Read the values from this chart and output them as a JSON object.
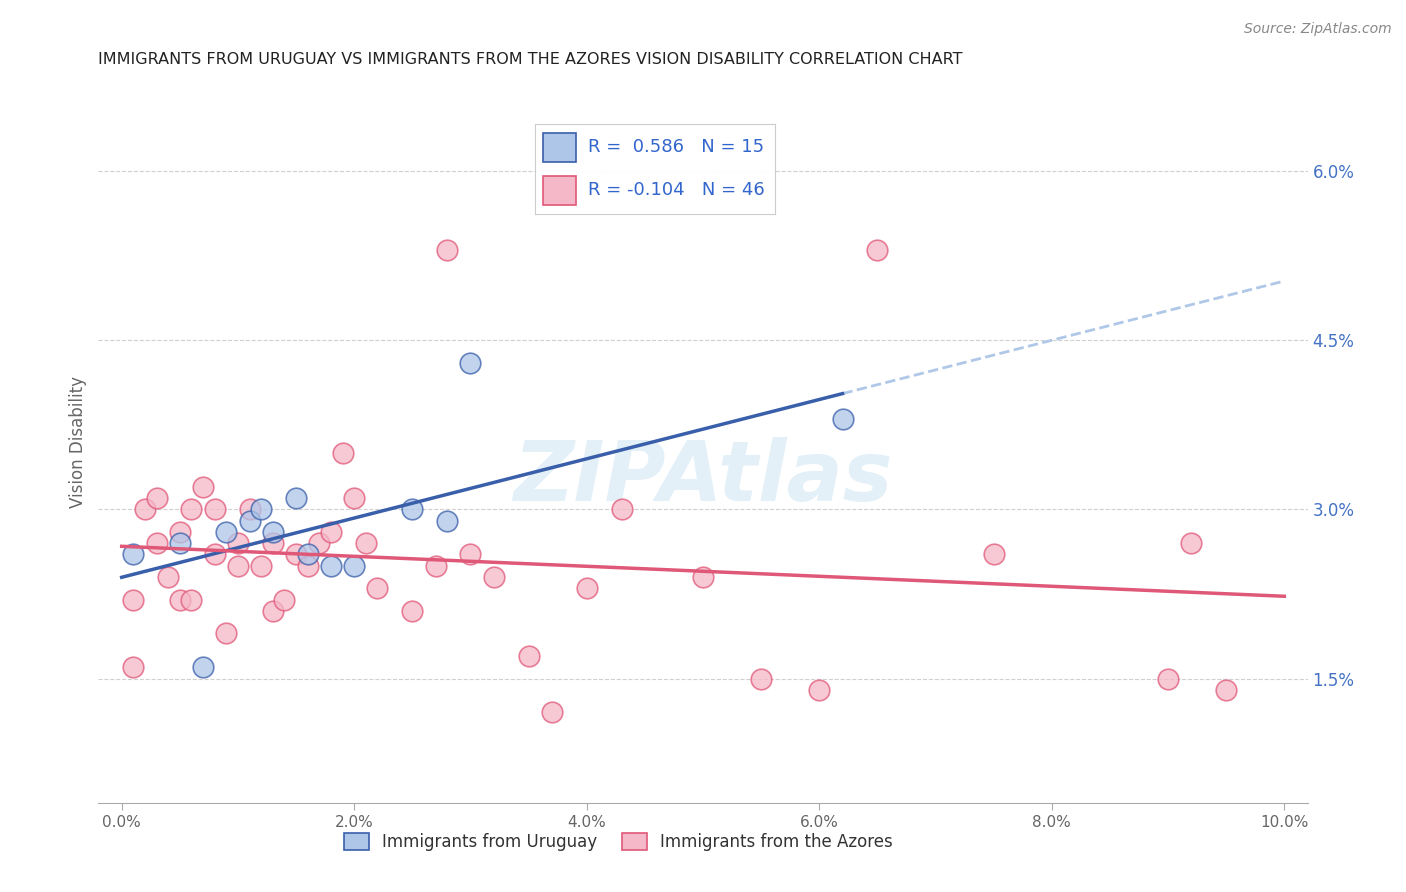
{
  "title": "IMMIGRANTS FROM URUGUAY VS IMMIGRANTS FROM THE AZORES VISION DISABILITY CORRELATION CHART",
  "source": "Source: ZipAtlas.com",
  "ylabel": "Vision Disability",
  "ytick_labels": [
    "1.5%",
    "3.0%",
    "4.5%",
    "6.0%"
  ],
  "ytick_values": [
    0.015,
    0.03,
    0.045,
    0.06
  ],
  "xtick_values": [
    0.0,
    0.02,
    0.04,
    0.06,
    0.08,
    0.1
  ],
  "xlim": [
    -0.002,
    0.102
  ],
  "ylim": [
    0.004,
    0.068
  ],
  "legend_label1": "Immigrants from Uruguay",
  "legend_label2": "Immigrants from the Azores",
  "r1": "0.586",
  "n1": "15",
  "r2": "-0.104",
  "n2": "46",
  "uruguay_color": "#aec6e8",
  "azores_color": "#f5b8c8",
  "line1_color": "#3a5faa",
  "line2_color": "#e05878",
  "dash_color": "#b0c8e8",
  "watermark": "ZIPAtlas",
  "uruguay_x": [
    0.001,
    0.005,
    0.007,
    0.009,
    0.011,
    0.012,
    0.013,
    0.015,
    0.016,
    0.018,
    0.02,
    0.025,
    0.028,
    0.03,
    0.062
  ],
  "uruguay_y": [
    0.026,
    0.027,
    0.016,
    0.028,
    0.029,
    0.03,
    0.028,
    0.031,
    0.026,
    0.025,
    0.025,
    0.03,
    0.029,
    0.043,
    0.038
  ],
  "azores_x": [
    0.001,
    0.001,
    0.002,
    0.003,
    0.003,
    0.004,
    0.005,
    0.005,
    0.006,
    0.006,
    0.007,
    0.008,
    0.008,
    0.009,
    0.01,
    0.01,
    0.011,
    0.012,
    0.013,
    0.013,
    0.014,
    0.015,
    0.016,
    0.017,
    0.018,
    0.019,
    0.02,
    0.021,
    0.022,
    0.025,
    0.027,
    0.03,
    0.032,
    0.035,
    0.037,
    0.04,
    0.043,
    0.05,
    0.055,
    0.06,
    0.065,
    0.075,
    0.09,
    0.092,
    0.095,
    0.028
  ],
  "azores_y": [
    0.022,
    0.016,
    0.03,
    0.031,
    0.027,
    0.024,
    0.022,
    0.028,
    0.03,
    0.022,
    0.032,
    0.026,
    0.03,
    0.019,
    0.027,
    0.025,
    0.03,
    0.025,
    0.021,
    0.027,
    0.022,
    0.026,
    0.025,
    0.027,
    0.028,
    0.035,
    0.031,
    0.027,
    0.023,
    0.021,
    0.025,
    0.026,
    0.024,
    0.017,
    0.012,
    0.023,
    0.03,
    0.024,
    0.015,
    0.014,
    0.053,
    0.026,
    0.015,
    0.027,
    0.014,
    0.053
  ]
}
